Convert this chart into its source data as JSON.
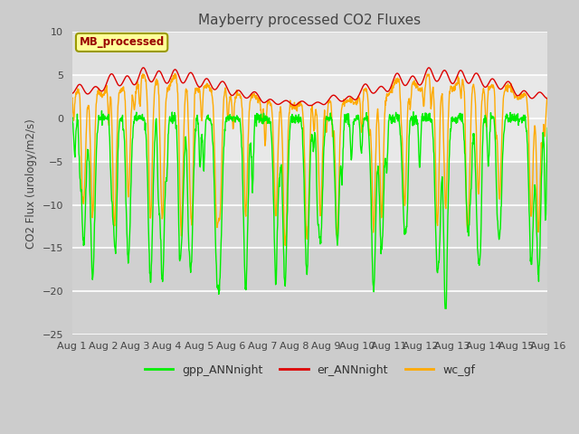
{
  "title": "Mayberry processed CO2 Fluxes",
  "ylabel": "CO2 Flux (urology/m2/s)",
  "ylim": [
    -25,
    10
  ],
  "yticks": [
    10,
    5,
    0,
    -5,
    -10,
    -15,
    -20,
    -25
  ],
  "xtick_labels": [
    "Aug 1",
    "Aug 2",
    "Aug 3",
    "Aug 4",
    "Aug 5",
    "Aug 6",
    "Aug 7",
    "Aug 8",
    "Aug 9",
    "Aug 10",
    "Aug 11",
    "Aug 12",
    "Aug 13",
    "Aug 14",
    "Aug 15",
    "Aug 16"
  ],
  "legend_box_text": "MB_processed",
  "legend_box_color": "#990000",
  "legend_box_bg": "#ffff99",
  "legend_box_border": "#999900",
  "fig_bg_color": "#cccccc",
  "plot_bg_light": "#e8e8e8",
  "plot_bg_dark": "#d8d8d8",
  "gpp_color": "#00ee00",
  "er_color": "#dd0000",
  "wc_color": "#ffaa00",
  "line_width": 1.0,
  "n_points": 1440
}
